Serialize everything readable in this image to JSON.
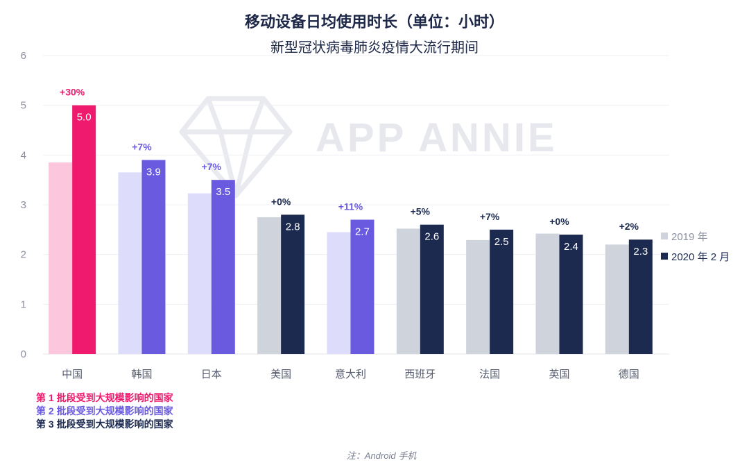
{
  "header": {
    "title": "移动设备日均使用时长（单位：小时）",
    "subtitle": "新型冠状病毒肺炎疫情大流行期间"
  },
  "watermark": {
    "text": "APP ANNIE"
  },
  "chart_data": {
    "type": "bar",
    "title": "移动设备日均使用时长（单位：小时）",
    "subtitle": "新型冠状病毒肺炎疫情大流行期间",
    "categories": [
      "中国",
      "韩国",
      "日本",
      "美国",
      "意大利",
      "西班牙",
      "法国",
      "英国",
      "德国"
    ],
    "series": [
      {
        "name": "2019 年",
        "values": [
          3.85,
          3.65,
          3.23,
          2.75,
          2.45,
          2.52,
          2.29,
          2.42,
          2.2
        ]
      },
      {
        "name": "2020 年 2 月",
        "values": [
          5.0,
          3.9,
          3.5,
          2.8,
          2.7,
          2.6,
          2.5,
          2.4,
          2.3
        ]
      }
    ],
    "value_labels": [
      "5.0",
      "3.9",
      "3.5",
      "2.8",
      "2.7",
      "2.6",
      "2.5",
      "2.4",
      "2.3"
    ],
    "change_labels": [
      "+30%",
      "+7%",
      "+7%",
      "+0%",
      "+11%",
      "+5%",
      "+7%",
      "+0%",
      "+2%"
    ],
    "group_of_category": [
      1,
      2,
      2,
      3,
      2,
      3,
      3,
      3,
      3
    ],
    "ylim": [
      0,
      6
    ],
    "yticks": [
      0,
      1,
      2,
      3,
      4,
      5,
      6
    ],
    "grid": true,
    "legend_position": "right"
  },
  "colors": {
    "group1_2020": "#ef1a6d",
    "group1_2019": "#fcc6dc",
    "group2_2020": "#6a5ae0",
    "group2_2019": "#dddcfa",
    "group3_2020": "#1c2a50",
    "group3_2019": "#cfd3db",
    "legend_2019": "#cfd3db",
    "legend_2020": "#1c2a50",
    "change_group1": "#ef1a6d",
    "change_group2": "#6a5ae0",
    "change_group3": "#1c2a50",
    "axis_text": "#8a8fa0",
    "gridline": "#eeeff3"
  },
  "groups_legend": [
    {
      "label": "第 1 批段受到大规模影响的国家",
      "color": "#ef1a6d"
    },
    {
      "label": "第 2 批段受到大规模影响的国家",
      "color": "#6a5ae0"
    },
    {
      "label": "第 3 批段受到大规模影响的国家",
      "color": "#1c2a50"
    }
  ],
  "footer": {
    "note": "注：Android 手机"
  }
}
